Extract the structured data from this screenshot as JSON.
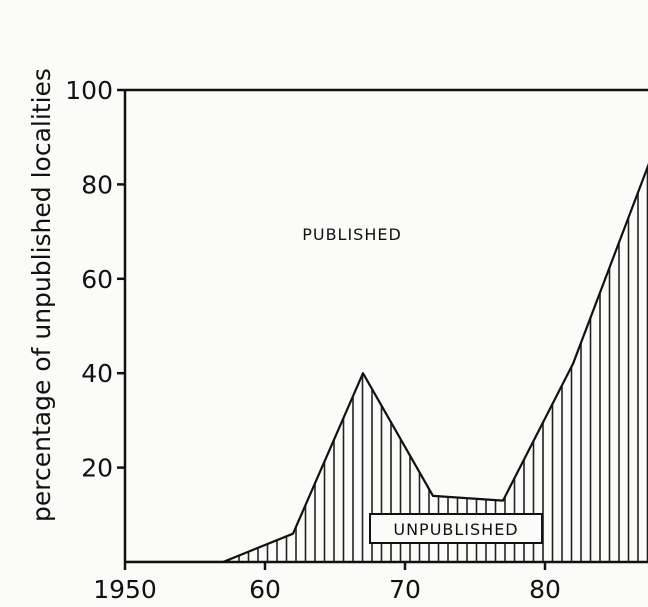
{
  "chart_data": {
    "type": "area",
    "title": "",
    "xlabel": "",
    "ylabel": "percentage of unpublished localities",
    "xlim": [
      1950,
      1987.5
    ],
    "ylim": [
      0,
      100
    ],
    "x_ticks": [
      1950,
      1960,
      1970,
      1980
    ],
    "x_tick_labels": [
      "1950",
      "60",
      "70",
      "80"
    ],
    "y_ticks": [
      20,
      40,
      60,
      80,
      100
    ],
    "y_tick_labels": [
      "20",
      "40",
      "60",
      "80",
      "100"
    ],
    "grid": false,
    "fill_pattern": "vertical-hatch",
    "series": [
      {
        "x": [
          1950,
          1957,
          1962,
          1967,
          1972,
          1977,
          1982,
          1987.5
        ],
        "values": [
          0,
          0,
          6,
          40,
          14,
          13,
          42,
          85
        ]
      }
    ],
    "annotations": {
      "above": "PUBLISHED",
      "below": "UNPUBLISHED"
    }
  }
}
